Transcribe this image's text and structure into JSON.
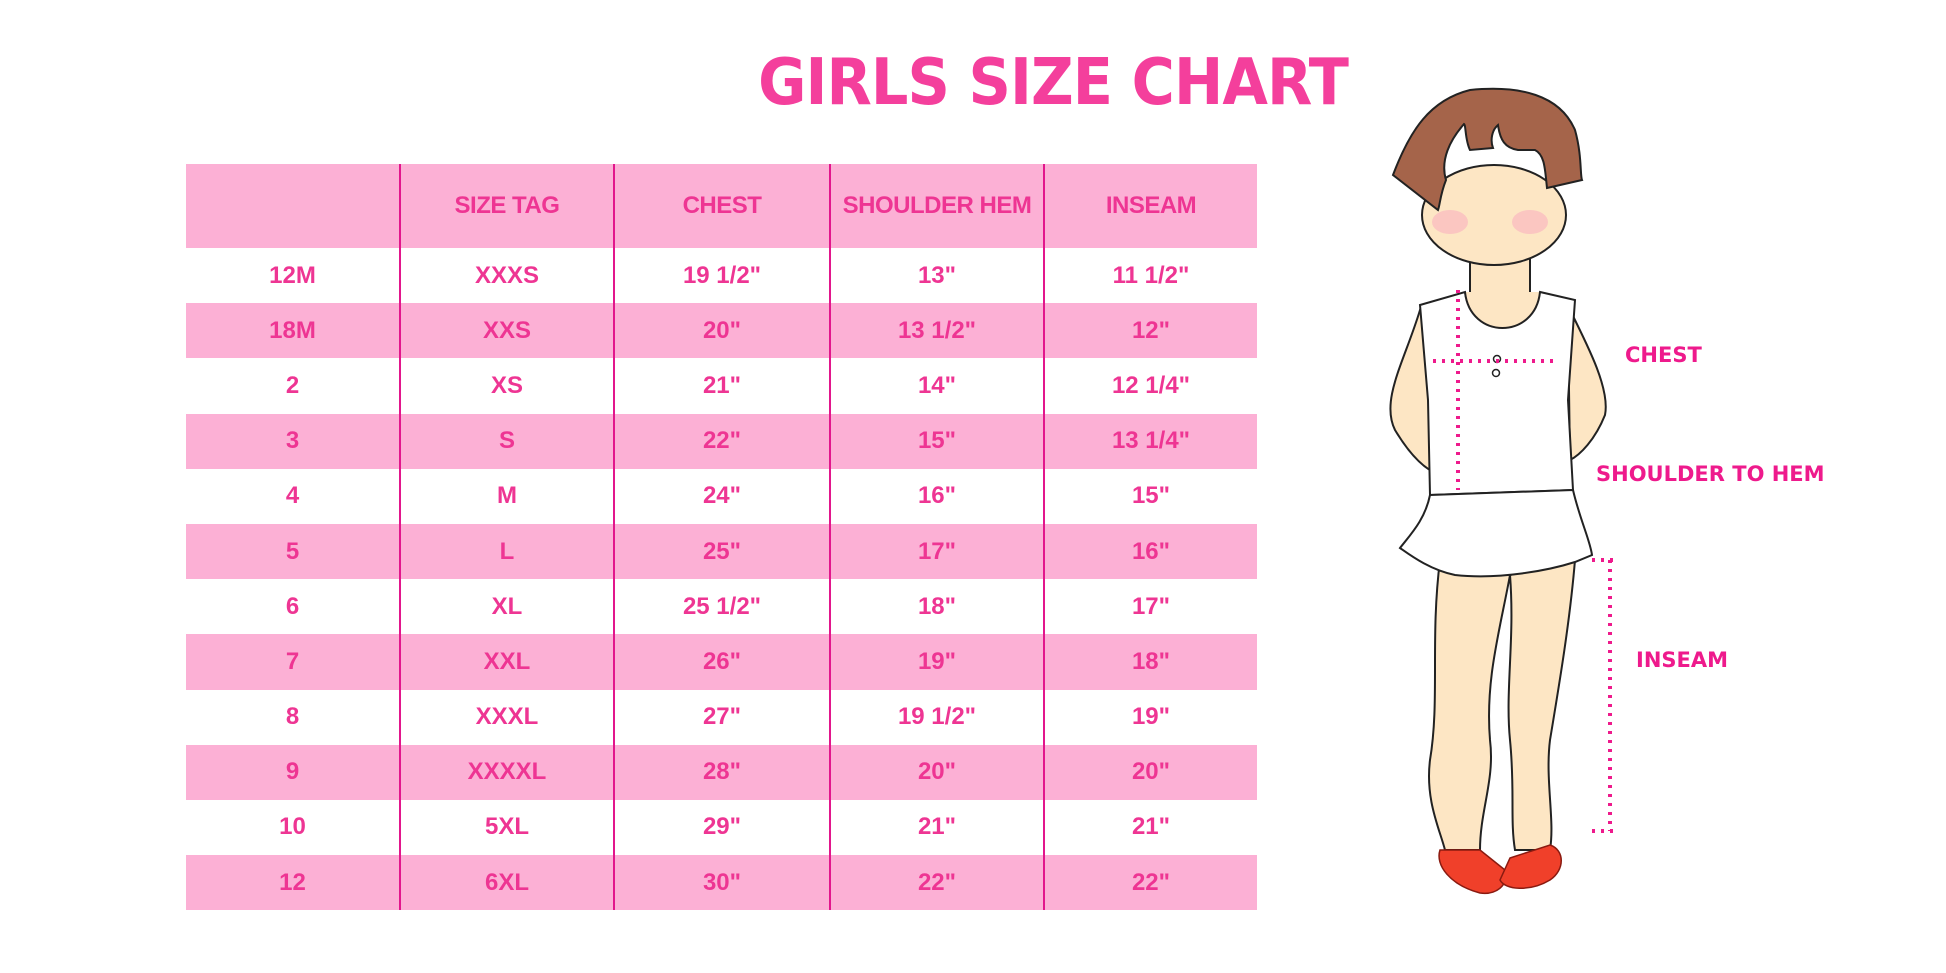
{
  "title": "GIRLS SIZE CHART",
  "table": {
    "headers": [
      "",
      "SIZE TAG",
      "CHEST",
      "SHOULDER HEM",
      "INSEAM"
    ],
    "rows": [
      [
        "12M",
        "XXXS",
        "19 1/2\"",
        "13\"",
        "11 1/2\""
      ],
      [
        "18M",
        "XXS",
        "20\"",
        "13 1/2\"",
        "12\""
      ],
      [
        "2",
        "XS",
        "21\"",
        "14\"",
        "12 1/4\""
      ],
      [
        "3",
        "S",
        "22\"",
        "15\"",
        "13 1/4\""
      ],
      [
        "4",
        "M",
        "24\"",
        "16\"",
        "15\""
      ],
      [
        "5",
        "L",
        "25\"",
        "17\"",
        "16\""
      ],
      [
        "6",
        "XL",
        "25 1/2\"",
        "18\"",
        "17\""
      ],
      [
        "7",
        "XXL",
        "26\"",
        "19\"",
        "18\""
      ],
      [
        "8",
        "XXXL",
        "27\"",
        "19 1/2\"",
        "19\""
      ],
      [
        "9",
        "XXXXL",
        "28\"",
        "20\"",
        "20\""
      ],
      [
        "10",
        "5XL",
        "29\"",
        "21\"",
        "21\""
      ],
      [
        "12",
        "6XL",
        "30\"",
        "22\"",
        "22\""
      ]
    ]
  },
  "figure": {
    "labels": {
      "chest": "CHEST",
      "shoulder": "SHOULDER TO HEM",
      "inseam": "INSEAM"
    }
  },
  "colors": {
    "accent": "#f43f9c",
    "row_pink": "#fcb0d5",
    "divider": "#e2168c",
    "hair": "#a5644a",
    "skin": "#fde6c4",
    "shoe": "#f0402a"
  }
}
